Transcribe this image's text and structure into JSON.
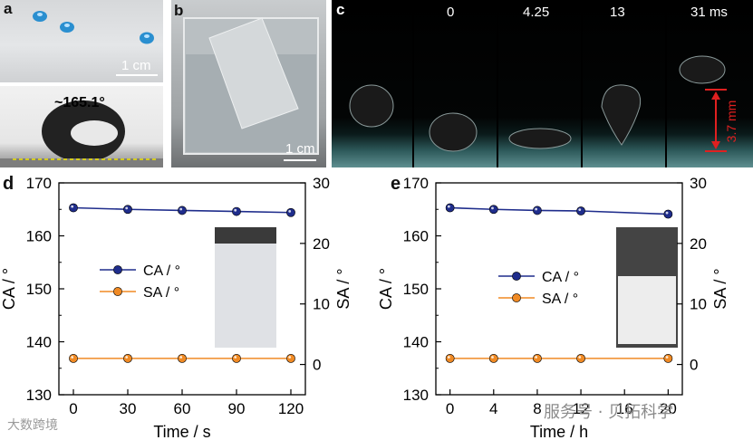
{
  "panel_a": {
    "label": "a",
    "scale_label": "1 cm",
    "angle_label": "~165.1°"
  },
  "panel_b": {
    "label": "b",
    "scale_label": "1 cm"
  },
  "panel_c": {
    "label": "c",
    "frame_labels": [
      "",
      "0",
      "4.25",
      "13",
      "31 ms"
    ],
    "height_label": "3.7 mm"
  },
  "panel_d": {
    "label": "d"
  },
  "panel_e": {
    "label": "e"
  },
  "watermarks": {
    "left": "大数跨境",
    "right": "服务号 · 贝拓科学"
  },
  "chart_data": [
    {
      "type": "line",
      "panel": "d",
      "xlabel": "Time / s",
      "ylabel_left": "CA / °",
      "ylabel_right": "SA / °",
      "x": [
        0,
        30,
        60,
        90,
        120
      ],
      "xticks": [
        "0",
        "30",
        "60",
        "90",
        "120"
      ],
      "xlim": [
        -8,
        128
      ],
      "ylim_left": [
        130,
        170
      ],
      "yticks_left": [
        "130",
        "140",
        "150",
        "160",
        "170"
      ],
      "ylim_right": [
        -5,
        30
      ],
      "yticks_right": [
        "0",
        "10",
        "20",
        "30"
      ],
      "series": [
        {
          "name": "CA / °",
          "axis": "left",
          "values": [
            165.3,
            165.0,
            164.8,
            164.6,
            164.4
          ],
          "color": "#1f2d8c"
        },
        {
          "name": "SA / °",
          "axis": "right",
          "values": [
            1,
            1,
            1,
            1,
            1
          ],
          "color": "#f08a24"
        }
      ],
      "legend": "center-left",
      "grid": false
    },
    {
      "type": "line",
      "panel": "e",
      "xlabel": "Time / h",
      "ylabel_left": "CA / °",
      "ylabel_right": "SA / °",
      "x": [
        0,
        4,
        8,
        12,
        20
      ],
      "xticks": [
        "0",
        "4",
        "8",
        "12",
        "16",
        "20"
      ],
      "xtick_values": [
        0,
        4,
        8,
        12,
        16,
        20
      ],
      "xlim": [
        -1.3,
        21.3
      ],
      "ylim_left": [
        130,
        170
      ],
      "yticks_left": [
        "130",
        "140",
        "150",
        "160",
        "170"
      ],
      "ylim_right": [
        -5,
        30
      ],
      "yticks_right": [
        "0",
        "10",
        "20",
        "30"
      ],
      "series": [
        {
          "name": "CA / °",
          "axis": "left",
          "values": [
            165.3,
            165.0,
            164.8,
            164.7,
            164.1
          ],
          "color": "#1f2d8c"
        },
        {
          "name": "SA / °",
          "axis": "right",
          "values": [
            1,
            1,
            1,
            1,
            1
          ],
          "color": "#f08a24"
        }
      ],
      "legend": "center-left",
      "grid": false
    }
  ]
}
